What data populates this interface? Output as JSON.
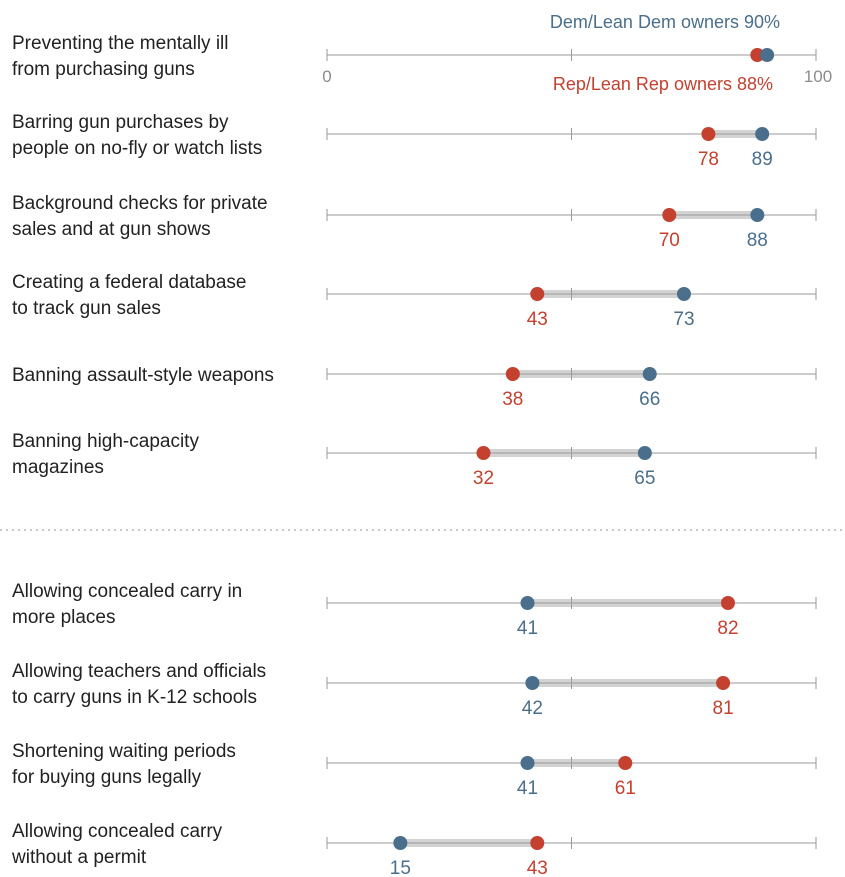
{
  "colors": {
    "dem": "#4a6f8c",
    "rep": "#c4402f",
    "axis": "#9a9a9a",
    "connector": "#cfcfcf",
    "text": "#222222",
    "muted": "#8c8c8c",
    "divider": "#b5b5b5"
  },
  "chart_data": {
    "type": "dumbbell",
    "xlim": [
      0,
      100
    ],
    "axis_ticks": [
      "0",
      "100"
    ],
    "legend": {
      "dem": "Dem/Lean Dem owners 90%",
      "rep": "Rep/Lean Rep owners 88%"
    },
    "series": [
      {
        "key": "dem",
        "name": "Dem/Lean Dem owners"
      },
      {
        "key": "rep",
        "name": "Rep/Lean Rep owners"
      }
    ],
    "groups": [
      {
        "rows": [
          {
            "label": [
              "Preventing the mentally ill",
              "from purchasing guns"
            ],
            "dem": 90,
            "rep": 88,
            "dem_text": "",
            "rep_text": ""
          },
          {
            "label": [
              "Barring gun purchases by",
              "people on no-fly or watch lists"
            ],
            "dem": 89,
            "rep": 78,
            "dem_text": "89",
            "rep_text": "78"
          },
          {
            "label": [
              "Background checks for private",
              "sales and at gun shows"
            ],
            "dem": 88,
            "rep": 70,
            "dem_text": "88",
            "rep_text": "70"
          },
          {
            "label": [
              "Creating a federal database",
              "to track gun sales"
            ],
            "dem": 73,
            "rep": 43,
            "dem_text": "73",
            "rep_text": "43"
          },
          {
            "label": [
              "Banning assault-style weapons"
            ],
            "dem": 66,
            "rep": 38,
            "dem_text": "66",
            "rep_text": "38"
          },
          {
            "label": [
              "Banning high-capacity",
              "magazines"
            ],
            "dem": 65,
            "rep": 32,
            "dem_text": "65",
            "rep_text": "32"
          }
        ]
      },
      {
        "rows": [
          {
            "label": [
              "Allowing concealed carry in",
              "more places"
            ],
            "dem": 41,
            "rep": 82,
            "dem_text": "41",
            "rep_text": "82"
          },
          {
            "label": [
              "Allowing teachers and officials",
              "to carry guns in K-12 schools"
            ],
            "dem": 42,
            "rep": 81,
            "dem_text": "42",
            "rep_text": "81"
          },
          {
            "label": [
              "Shortening waiting periods",
              "for buying guns legally"
            ],
            "dem": 41,
            "rep": 61,
            "dem_text": "41",
            "rep_text": "61"
          },
          {
            "label": [
              "Allowing concealed carry",
              "without a permit"
            ],
            "dem": 15,
            "rep": 43,
            "dem_text": "15",
            "rep_text": "43"
          }
        ]
      }
    ]
  }
}
